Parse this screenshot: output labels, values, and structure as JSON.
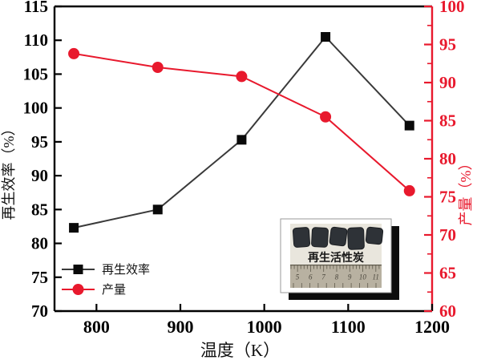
{
  "chart_data": {
    "type": "line",
    "x": [
      773,
      873,
      973,
      1073,
      1173
    ],
    "xlabel": "温度（K）",
    "xlim": [
      750,
      1200
    ],
    "xticks": [
      800,
      900,
      1000,
      1100,
      1200
    ],
    "left_axis": {
      "label": "再生效率（%）",
      "lim": [
        70,
        115
      ],
      "ticks": [
        70,
        75,
        80,
        85,
        90,
        95,
        100,
        105,
        110,
        115
      ],
      "color": "#000000"
    },
    "right_axis": {
      "label": "产量（%）",
      "lim": [
        60,
        100
      ],
      "ticks": [
        60,
        65,
        70,
        75,
        80,
        85,
        90,
        95,
        100
      ],
      "minor_step": 2.5,
      "color": "#e8192d"
    },
    "series": [
      {
        "name": "再生效率",
        "axis": "left",
        "marker": "square",
        "marker_color": "#0a0a0a",
        "line_color": "#3a3a3a",
        "values": [
          82.3,
          85.0,
          95.3,
          110.5,
          97.4
        ]
      },
      {
        "name": "产量",
        "axis": "right",
        "marker": "circle",
        "marker_color": "#e8192d",
        "line_color": "#e8192d",
        "values": [
          93.8,
          92.0,
          90.8,
          85.5,
          75.8
        ]
      }
    ],
    "legend": {
      "position": "lower-left",
      "entries": [
        "再生效率",
        "产量"
      ]
    },
    "grid": false
  },
  "inset": {
    "label": "再生活性炭",
    "ruler_numbers": [
      "5",
      "6",
      "7",
      "8",
      "9",
      "10",
      "11"
    ],
    "chunk_count": 5,
    "colors": {
      "photo_bg": "#e9e6dd",
      "ruler": "#b8b1a1",
      "ruler_tick": "#5f5a4c",
      "chunk": "#2e3237",
      "shadow": "#0d0d0d",
      "frame": "#ffffff",
      "frame_border": "#9a9a9a",
      "label": "#161616"
    }
  }
}
